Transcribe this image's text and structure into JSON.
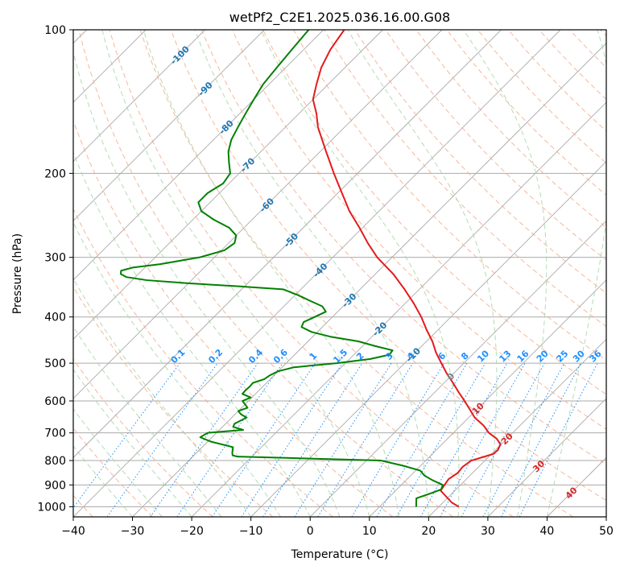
{
  "chart_data": {
    "type": "skew-t",
    "title": "wetPf2_C2E1.2025.036.16.00.G08",
    "xlabel": "Temperature (°C)",
    "ylabel": "Pressure (hPa)",
    "xlim": [
      -40,
      50
    ],
    "ylim": [
      1050,
      100
    ],
    "log_y": true,
    "grid": true,
    "x_ticks": [
      -40,
      -30,
      -20,
      -10,
      0,
      10,
      20,
      30,
      40,
      50
    ],
    "x_tick_labels": [
      "−40",
      "−30",
      "−20",
      "−10",
      "0",
      "10",
      "20",
      "30",
      "40",
      "50"
    ],
    "y_ticks": [
      1000,
      900,
      800,
      700,
      600,
      500,
      400,
      300,
      200,
      100
    ],
    "y_tick_labels": [
      "1000",
      "900",
      "800",
      "700",
      "600",
      "500",
      "400",
      "300",
      "200",
      "100"
    ],
    "temperature_profile": {
      "color": "#e41a1c",
      "p": [
        1000,
        980,
        950,
        925,
        900,
        875,
        850,
        825,
        800,
        775,
        760,
        740,
        720,
        700,
        675,
        650,
        625,
        600,
        575,
        550,
        525,
        500,
        475,
        450,
        425,
        400,
        375,
        350,
        325,
        300,
        280,
        260,
        240,
        220,
        200,
        180,
        160,
        150,
        140,
        130,
        120,
        110,
        100
      ],
      "t": [
        23.4,
        21.5,
        19.4,
        17.6,
        17.3,
        17.0,
        17.5,
        17.3,
        17.7,
        20.3,
        20.4,
        19.9,
        18.3,
        16.0,
        13.8,
        11.0,
        8.8,
        6.5,
        4.0,
        1.5,
        -1.2,
        -3.8,
        -6.5,
        -9.0,
        -12.0,
        -15.0,
        -18.5,
        -22.5,
        -27.0,
        -32.5,
        -36.5,
        -40.5,
        -45.0,
        -49.3,
        -54.0,
        -59.0,
        -64.5,
        -67.0,
        -70.0,
        -72.0,
        -74.0,
        -75.5,
        -76.5
      ]
    },
    "dewpoint_profile": {
      "color": "#008000",
      "p": [
        1000,
        980,
        960,
        940,
        920,
        900,
        880,
        860,
        840,
        820,
        800,
        790,
        785,
        780,
        770,
        750,
        730,
        715,
        700,
        690,
        680,
        670,
        660,
        650,
        640,
        630,
        620,
        600,
        590,
        580,
        570,
        560,
        550,
        540,
        530,
        520,
        510,
        500,
        490,
        480,
        470,
        460,
        450,
        440,
        430,
        420,
        410,
        400,
        390,
        380,
        370,
        360,
        350,
        345,
        340,
        335,
        330,
        325,
        320,
        315,
        310,
        300,
        290,
        280,
        270,
        260,
        250,
        240,
        230,
        220,
        210,
        200,
        190,
        180,
        170,
        160,
        150,
        140,
        130,
        120,
        110,
        100
      ],
      "td": [
        16.2,
        15.5,
        14.8,
        16.2,
        17.5,
        17.0,
        14.5,
        12.3,
        10.8,
        7.0,
        2.4,
        -14.0,
        -22.5,
        -23.5,
        -24.0,
        -24.8,
        -29.5,
        -32.0,
        -31.5,
        -26.0,
        -28.2,
        -28.5,
        -28.0,
        -27.5,
        -29.0,
        -30.0,
        -29.0,
        -31.0,
        -30.2,
        -32.2,
        -32.3,
        -32.2,
        -32.3,
        -31.0,
        -30.7,
        -30.0,
        -28.0,
        -21.5,
        -16.5,
        -14.0,
        -14.2,
        -18.0,
        -21.5,
        -27.0,
        -31.0,
        -33.5,
        -34.0,
        -33.0,
        -32.0,
        -33.5,
        -36.5,
        -39.5,
        -43.0,
        -51.0,
        -60.0,
        -67.5,
        -71.5,
        -73.0,
        -73.5,
        -72.0,
        -68.0,
        -62.5,
        -59.5,
        -59.0,
        -60.0,
        -62.5,
        -66.5,
        -70.0,
        -72.0,
        -72.0,
        -71.0,
        -71.5,
        -73.5,
        -75.5,
        -77.0,
        -78.0,
        -79.0,
        -80.0,
        -81.0,
        -81.5,
        -82.0,
        -82.5
      ]
    },
    "isotherm_labels": {
      "color": "#1f77b4",
      "entries": [
        {
          "text": "-100",
          "t": -100,
          "p": 113
        },
        {
          "text": "-90",
          "t": -90,
          "p": 133
        },
        {
          "text": "-80",
          "t": -80,
          "p": 160
        },
        {
          "text": "-70",
          "t": -70,
          "p": 192
        },
        {
          "text": "-60",
          "t": -60,
          "p": 233
        },
        {
          "text": "-50",
          "t": -50,
          "p": 276
        },
        {
          "text": "-40",
          "t": -40,
          "p": 319
        },
        {
          "text": "-30",
          "t": -30,
          "p": 369
        },
        {
          "text": "-20",
          "t": -20,
          "p": 424
        },
        {
          "text": "-10",
          "t": -10,
          "p": 480
        }
      ]
    },
    "dry_adiabat_labels": {
      "color": "#d62728",
      "entries": [
        {
          "text": "0",
          "t": 0,
          "p": 533
        },
        {
          "text": "10",
          "t": 10,
          "p": 622
        },
        {
          "text": "20",
          "t": 20,
          "p": 720
        },
        {
          "text": "30",
          "t": 30,
          "p": 822
        },
        {
          "text": "40",
          "t": 40,
          "p": 935
        }
      ],
      "zero_color": "#7f7f7f"
    },
    "mixing_ratio_labels": {
      "color": "#1e90ff",
      "values": [
        "0.1",
        "0.2",
        "0.4",
        "0.6",
        "1",
        "1.5",
        "2",
        "3",
        "4",
        "6",
        "8",
        "10",
        "13",
        "16",
        "20",
        "25",
        "30",
        "36"
      ],
      "label_pressure": 500
    },
    "line_styles": {
      "isotherm_color": "#aaaaaa",
      "isobar_color": "#aaaaaa",
      "dry_adiabat_color": "#f4a582",
      "moist_adiabat_color": "#a6d6a6",
      "mixing_ratio_color": "#1e90ff"
    }
  }
}
